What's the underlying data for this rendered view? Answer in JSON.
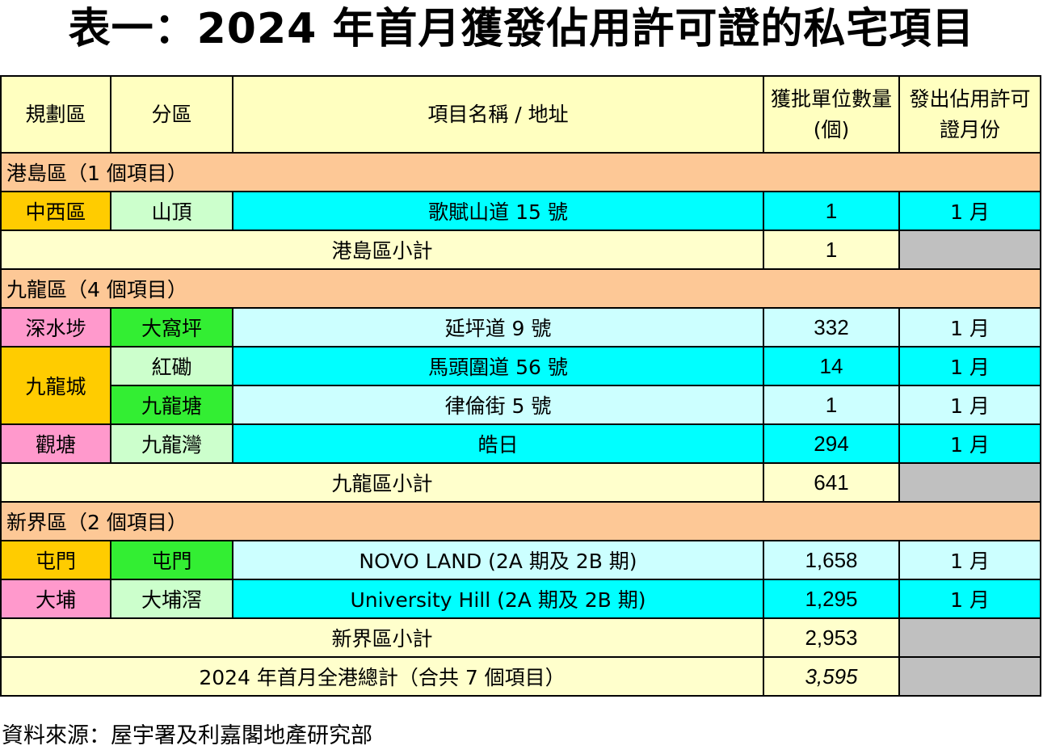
{
  "title": "表一：2024 年首月獲發佔用許可證的私宅項目",
  "headers": {
    "region": "規劃區",
    "district": "分區",
    "project": "項目名稱 / 地址",
    "units": "獲批單位數量(個)",
    "month": "發出佔用許可證月份"
  },
  "sections": {
    "hk": {
      "label": "港島區（1 個項目）",
      "subtotal_label": "港島區小計",
      "subtotal": "1"
    },
    "kln": {
      "label": "九龍區（4 個項目）",
      "subtotal_label": "九龍區小計",
      "subtotal": "641"
    },
    "nt": {
      "label": "新界區（2 個項目）",
      "subtotal_label": "新界區小計",
      "subtotal": "2,953"
    }
  },
  "rows": [
    {
      "region": "中西區",
      "district": "山頂",
      "project": "歌賦山道 15 號",
      "units": "1",
      "month": "1 月"
    },
    {
      "region": "深水埗",
      "district": "大窩坪",
      "project": "延坪道 9 號",
      "units": "332",
      "month": "1 月"
    },
    {
      "region": "九龍城",
      "district": "紅磡",
      "project": "馬頭圍道 56 號",
      "units": "14",
      "month": "1 月"
    },
    {
      "region": "",
      "district": "九龍塘",
      "project": "律倫街 5 號",
      "units": "1",
      "month": "1 月"
    },
    {
      "region": "觀塘",
      "district": "九龍灣",
      "project": "皓日",
      "units": "294",
      "month": "1 月"
    },
    {
      "region": "屯門",
      "district": "屯門",
      "project": "NOVO LAND (2A 期及 2B 期)",
      "units": "1,658",
      "month": "1 月"
    },
    {
      "region": "大埔",
      "district": "大埔滘",
      "project": "University Hill (2A 期及 2B 期)",
      "units": "1,295",
      "month": "1 月"
    }
  ],
  "total": {
    "label": "2024 年首月全港總計（合共 7 個項目）",
    "value": "3,595"
  },
  "source": "資料來源：屋宇署及利嘉閣地產研究部"
}
